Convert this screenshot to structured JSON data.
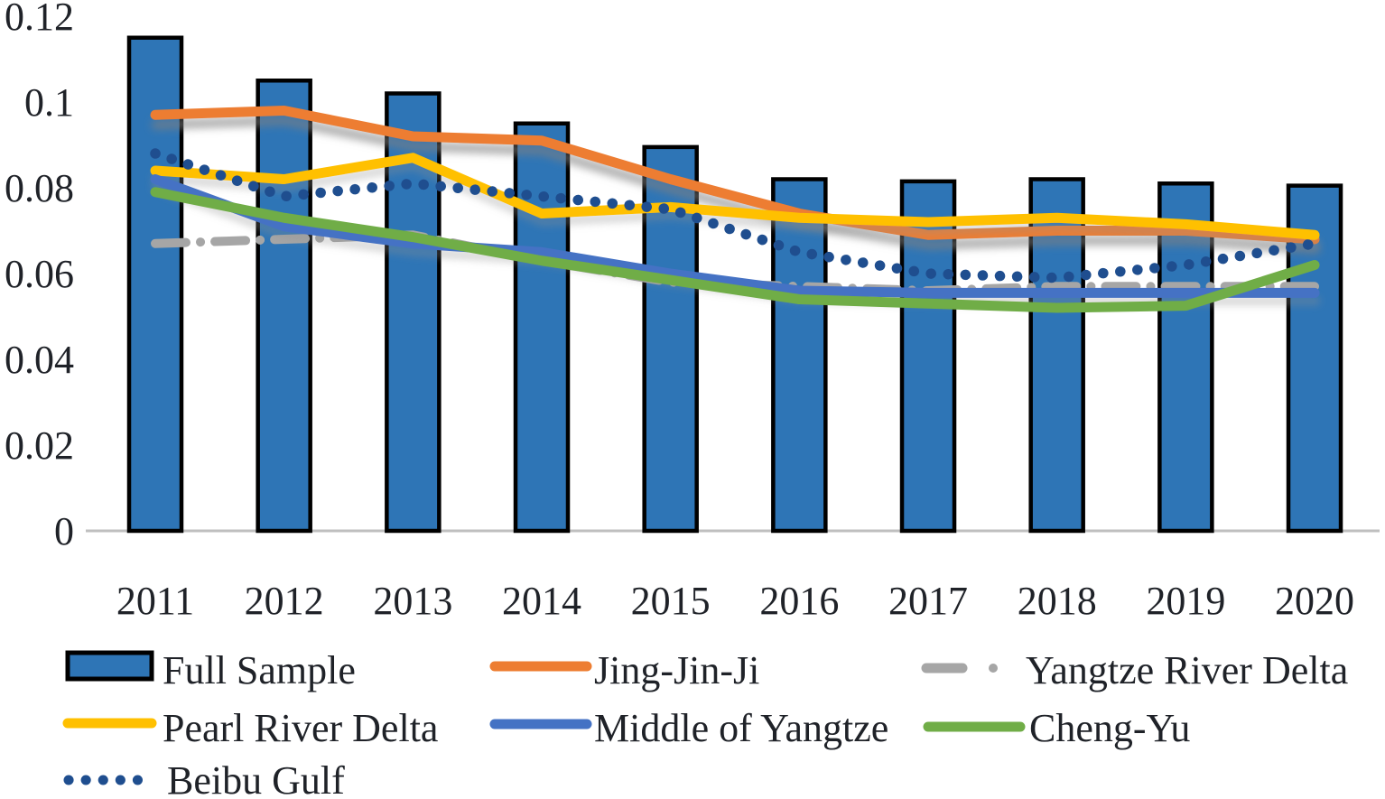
{
  "chart_data": {
    "type": "combo-bar-line",
    "title": "",
    "categories": [
      "2011",
      "2012",
      "2013",
      "2014",
      "2015",
      "2016",
      "2017",
      "2018",
      "2019",
      "2020"
    ],
    "y_ticks": [
      "0",
      "0.02",
      "0.04",
      "0.06",
      "0.08",
      "0.1",
      "0.12"
    ],
    "ylim": [
      0,
      0.12
    ],
    "grid": false,
    "legend_position": "bottom-left",
    "series": [
      {
        "name": "Full Sample",
        "type": "bar",
        "color": "#2E75B6",
        "border_color": "#000000",
        "values": [
          0.115,
          0.105,
          0.102,
          0.095,
          0.0895,
          0.082,
          0.0815,
          0.082,
          0.081,
          0.0805
        ]
      },
      {
        "name": "Jing-Jin-Ji",
        "type": "line",
        "line_style": "solid",
        "color": "#ED7D31",
        "shadow": "strong",
        "values": [
          0.097,
          0.098,
          0.092,
          0.091,
          0.082,
          0.074,
          0.069,
          0.07,
          0.07,
          0.068
        ]
      },
      {
        "name": "Yangtze River Delta",
        "type": "line",
        "line_style": "dash-dot",
        "color": "#A6A6A6",
        "shadow": "none",
        "values": [
          0.067,
          0.068,
          0.069,
          0.063,
          0.058,
          0.057,
          0.056,
          0.057,
          0.057,
          0.057
        ]
      },
      {
        "name": "Pearl River Delta",
        "type": "line",
        "line_style": "solid",
        "color": "#FFC000",
        "shadow": "soft",
        "values": [
          0.084,
          0.082,
          0.087,
          0.074,
          0.0755,
          0.073,
          0.072,
          0.073,
          0.0715,
          0.069
        ]
      },
      {
        "name": "Middle of Yangtze",
        "type": "line",
        "line_style": "solid",
        "color": "#4472C4",
        "shadow": "soft",
        "values": [
          0.082,
          0.071,
          0.067,
          0.065,
          0.06,
          0.056,
          0.0555,
          0.0555,
          0.0555,
          0.0555
        ]
      },
      {
        "name": "Cheng-Yu",
        "type": "line",
        "line_style": "solid",
        "color": "#70AD47",
        "shadow": "none",
        "values": [
          0.079,
          0.073,
          0.0685,
          0.063,
          0.0585,
          0.054,
          0.053,
          0.052,
          0.0525,
          0.062
        ]
      },
      {
        "name": "Beibu Gulf",
        "type": "line",
        "line_style": "dotted",
        "color": "#1F4E8F",
        "shadow": "none",
        "values": [
          0.088,
          0.078,
          0.081,
          0.078,
          0.075,
          0.065,
          0.06,
          0.059,
          0.062,
          0.067
        ]
      }
    ]
  },
  "legend": {
    "items": [
      "Full Sample",
      "Jing-Jin-Ji",
      "Yangtze River Delta",
      "Pearl River Delta",
      "Middle of Yangtze",
      "Cheng-Yu",
      "Beibu Gulf"
    ]
  },
  "colors": {
    "background": "#FFFFFF",
    "axis_line": "#BFBFBF",
    "text": "#1F2228",
    "shadow": "#808080"
  }
}
